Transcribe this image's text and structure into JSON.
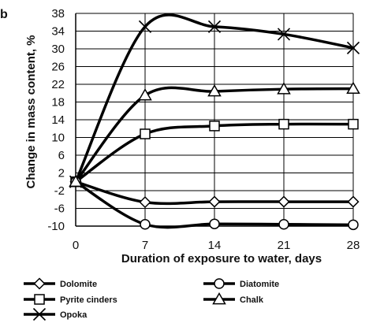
{
  "chart_data": {
    "type": "line",
    "panel_label": "b",
    "xlabel": "Duration of exposure to water, days",
    "ylabel": "Change in mass content, %",
    "x": [
      0,
      7,
      14,
      21,
      28
    ],
    "xticks": [
      "0",
      "7",
      "14",
      "21",
      "28"
    ],
    "yticks": [
      -10,
      -6,
      -2,
      2,
      6,
      10,
      14,
      18,
      22,
      26,
      30,
      34,
      38
    ],
    "ylim": [
      -10,
      38
    ],
    "grid": "vertical and horizontal major lines at x ticks and every 4%",
    "legend_placement": "bottom",
    "series": [
      {
        "name": "Dolomite",
        "marker": "diamond",
        "values": [
          0,
          -4.6,
          -4.5,
          -4.5,
          -4.5
        ]
      },
      {
        "name": "Pyrite cinders",
        "marker": "square",
        "values": [
          0,
          10.8,
          12.6,
          13.0,
          13.0
        ]
      },
      {
        "name": "Opoka",
        "marker": "x",
        "values": [
          0,
          35.0,
          35.0,
          33.3,
          30.2
        ]
      },
      {
        "name": "Diatomite",
        "marker": "circle",
        "values": [
          0,
          -9.6,
          -9.5,
          -9.6,
          -9.7
        ]
      },
      {
        "name": "Chalk",
        "marker": "triangle",
        "values": [
          0,
          19.5,
          20.4,
          20.9,
          21.0
        ]
      }
    ]
  }
}
